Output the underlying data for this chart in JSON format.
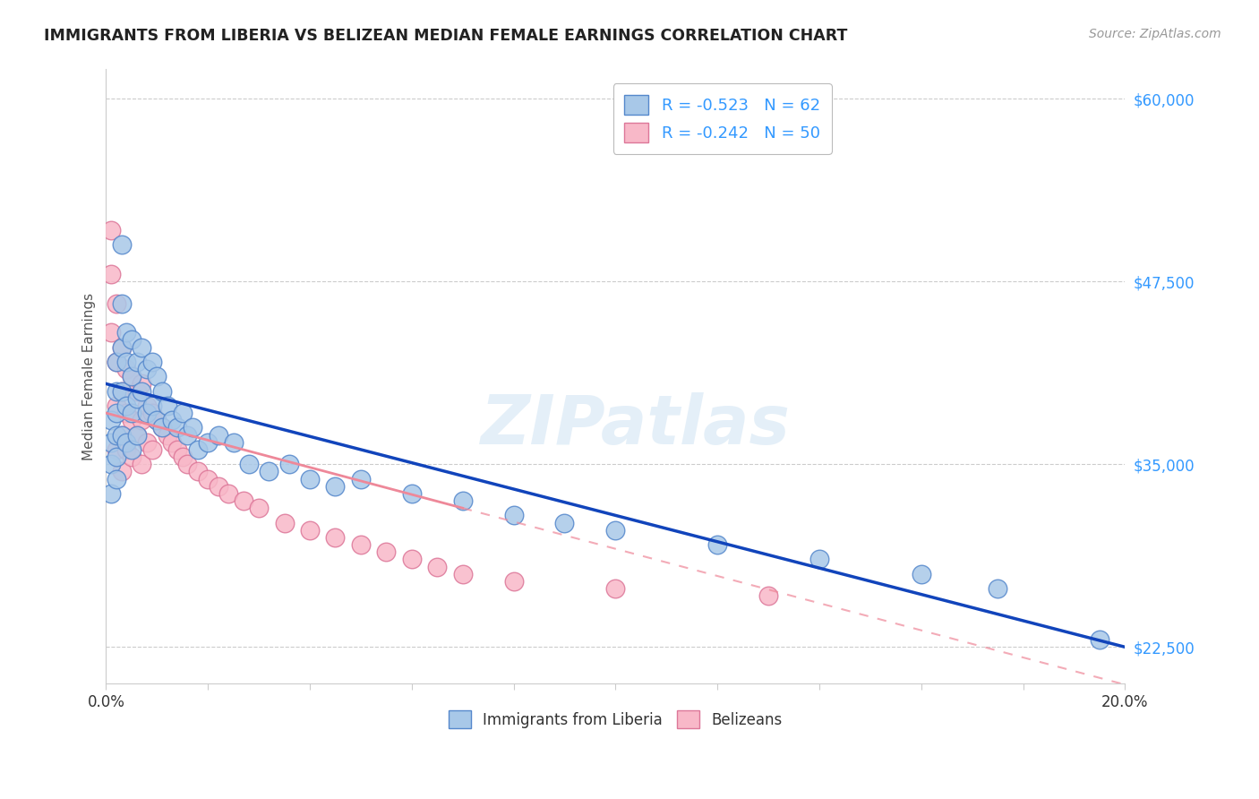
{
  "title": "IMMIGRANTS FROM LIBERIA VS BELIZEAN MEDIAN FEMALE EARNINGS CORRELATION CHART",
  "source": "Source: ZipAtlas.com",
  "ylabel": "Median Female Earnings",
  "xlim": [
    0.0,
    0.2
  ],
  "ylim": [
    20000,
    62000
  ],
  "yticks": [
    22500,
    35000,
    47500,
    60000
  ],
  "ytick_labels": [
    "$22,500",
    "$35,000",
    "$47,500",
    "$60,000"
  ],
  "xticks": [
    0.0,
    0.02,
    0.04,
    0.06,
    0.08,
    0.1,
    0.12,
    0.14,
    0.16,
    0.18,
    0.2
  ],
  "xtick_labels_show": [
    "0.0%",
    "",
    "",
    "",
    "",
    "",
    "",
    "",
    "",
    "",
    "20.0%"
  ],
  "series1_color": "#a8c8e8",
  "series1_edge": "#5588cc",
  "series1_line_color": "#1144bb",
  "series2_color": "#f8b8c8",
  "series2_edge": "#dd7799",
  "series2_line_color": "#ee8899",
  "legend1_label": "R = -0.523   N = 62",
  "legend2_label": "R = -0.242   N = 50",
  "legend_bottom1": "Immigrants from Liberia",
  "legend_bottom2": "Belizeans",
  "watermark": "ZIPatlas",
  "background_color": "#ffffff",
  "grid_color": "#cccccc",
  "title_color": "#222222",
  "ylabel_color": "#555555",
  "ytick_color": "#3399ff",
  "source_color": "#999999",
  "series1_line_y0": 40500,
  "series1_line_y1": 22500,
  "series2_line_x0": 0.0,
  "series2_line_y0": 38500,
  "series2_line_x1": 0.07,
  "series2_line_y1": 32000,
  "series1_x": [
    0.001,
    0.001,
    0.001,
    0.001,
    0.002,
    0.002,
    0.002,
    0.002,
    0.002,
    0.002,
    0.003,
    0.003,
    0.003,
    0.003,
    0.003,
    0.004,
    0.004,
    0.004,
    0.004,
    0.005,
    0.005,
    0.005,
    0.005,
    0.006,
    0.006,
    0.006,
    0.007,
    0.007,
    0.008,
    0.008,
    0.009,
    0.009,
    0.01,
    0.01,
    0.011,
    0.011,
    0.012,
    0.013,
    0.014,
    0.015,
    0.016,
    0.017,
    0.018,
    0.02,
    0.022,
    0.025,
    0.028,
    0.032,
    0.036,
    0.04,
    0.045,
    0.05,
    0.06,
    0.07,
    0.08,
    0.09,
    0.1,
    0.12,
    0.14,
    0.16,
    0.175,
    0.195
  ],
  "series1_y": [
    38000,
    36500,
    35000,
    33000,
    42000,
    40000,
    38500,
    37000,
    35500,
    34000,
    50000,
    46000,
    43000,
    40000,
    37000,
    44000,
    42000,
    39000,
    36500,
    43500,
    41000,
    38500,
    36000,
    42000,
    39500,
    37000,
    43000,
    40000,
    41500,
    38500,
    42000,
    39000,
    41000,
    38000,
    40000,
    37500,
    39000,
    38000,
    37500,
    38500,
    37000,
    37500,
    36000,
    36500,
    37000,
    36500,
    35000,
    34500,
    35000,
    34000,
    33500,
    34000,
    33000,
    32500,
    31500,
    31000,
    30500,
    29500,
    28500,
    27500,
    26500,
    23000
  ],
  "series2_x": [
    0.001,
    0.001,
    0.001,
    0.002,
    0.002,
    0.002,
    0.002,
    0.003,
    0.003,
    0.003,
    0.003,
    0.004,
    0.004,
    0.004,
    0.005,
    0.005,
    0.005,
    0.006,
    0.006,
    0.007,
    0.007,
    0.007,
    0.008,
    0.008,
    0.009,
    0.009,
    0.01,
    0.011,
    0.012,
    0.013,
    0.014,
    0.015,
    0.016,
    0.018,
    0.02,
    0.022,
    0.024,
    0.027,
    0.03,
    0.035,
    0.04,
    0.045,
    0.05,
    0.055,
    0.06,
    0.065,
    0.07,
    0.08,
    0.1,
    0.13
  ],
  "series2_y": [
    51000,
    48000,
    44000,
    46000,
    42000,
    39000,
    36000,
    43000,
    40000,
    37000,
    34500,
    41500,
    38500,
    36000,
    41000,
    38000,
    35500,
    40000,
    37000,
    40500,
    38000,
    35000,
    39000,
    36500,
    38500,
    36000,
    38000,
    37500,
    37000,
    36500,
    36000,
    35500,
    35000,
    34500,
    34000,
    33500,
    33000,
    32500,
    32000,
    31000,
    30500,
    30000,
    29500,
    29000,
    28500,
    28000,
    27500,
    27000,
    26500,
    26000
  ]
}
